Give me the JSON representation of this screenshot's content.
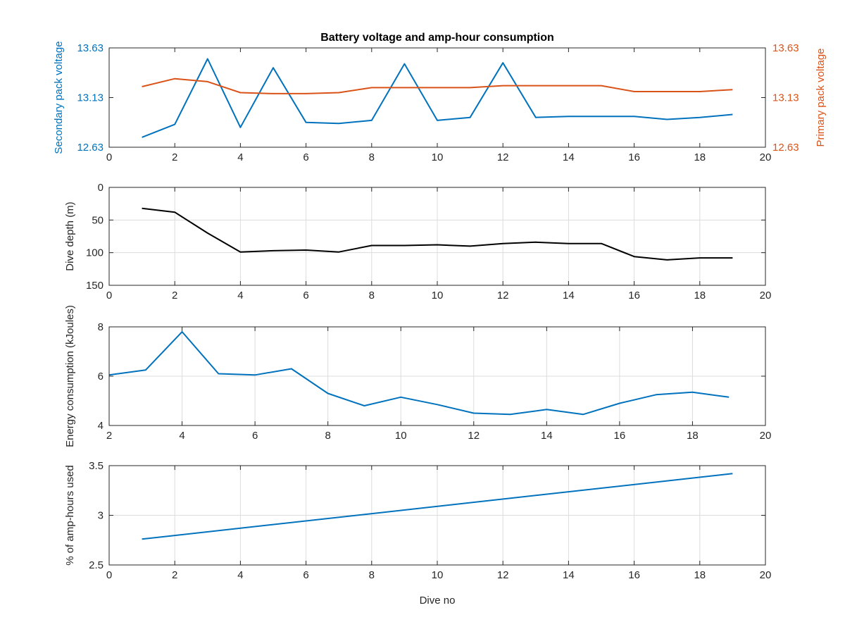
{
  "figure_title": "Battery voltage and amp-hour consumption",
  "chart_data": [
    {
      "type": "line",
      "title": "Battery voltage and amp-hour consumption",
      "xlabel": "",
      "xlim": [
        0,
        20
      ],
      "x_ticks": [
        "0",
        "2",
        "4",
        "6",
        "8",
        "10",
        "12",
        "14",
        "16",
        "18",
        "20"
      ],
      "grid": false,
      "axes": {
        "left": {
          "label": "Secondary pack voltage",
          "ylim": [
            12.63,
            13.63
          ],
          "ticks": [
            "12.63",
            "13.13",
            "13.63"
          ],
          "color": "#0072BD"
        },
        "right": {
          "label": "Primary pack voltage",
          "ylim": [
            12.63,
            13.63
          ],
          "ticks": [
            "12.63",
            "13.13",
            "13.63"
          ],
          "color": "#D95319"
        }
      },
      "series": [
        {
          "axis": "left",
          "color": "#0072BD",
          "x": [
            1,
            2,
            3,
            4,
            5,
            6,
            7,
            8,
            9,
            10,
            11,
            12,
            13,
            14,
            15,
            16,
            17,
            18,
            19
          ],
          "values": [
            12.73,
            12.86,
            13.52,
            12.83,
            13.43,
            12.88,
            12.87,
            12.9,
            13.47,
            12.9,
            12.93,
            13.48,
            12.93,
            12.94,
            12.94,
            12.94,
            12.91,
            12.93,
            12.96
          ]
        },
        {
          "axis": "right",
          "color": "#D95319",
          "x": [
            1,
            2,
            3,
            4,
            5,
            6,
            7,
            8,
            9,
            10,
            11,
            12,
            13,
            14,
            15,
            16,
            17,
            18,
            19
          ],
          "values": [
            13.24,
            13.32,
            13.29,
            13.18,
            13.17,
            13.17,
            13.18,
            13.23,
            13.23,
            13.23,
            13.23,
            13.25,
            13.25,
            13.25,
            13.25,
            13.19,
            13.19,
            13.19,
            13.21
          ]
        }
      ]
    },
    {
      "type": "line",
      "title": "",
      "xlabel": "",
      "ylabel": "Dive depth (m)",
      "xlim": [
        0,
        20
      ],
      "ylim": [
        0,
        150
      ],
      "y_reversed": true,
      "x_ticks": [
        "0",
        "2",
        "4",
        "6",
        "8",
        "10",
        "12",
        "14",
        "16",
        "18",
        "20"
      ],
      "y_ticks": [
        "0",
        "50",
        "100",
        "150"
      ],
      "grid": true,
      "series": [
        {
          "color": "#000000",
          "x": [
            1,
            2,
            3,
            4,
            5,
            6,
            7,
            8,
            9,
            10,
            11,
            12,
            13,
            14,
            15,
            16,
            17,
            18,
            19
          ],
          "values": [
            32,
            38,
            70,
            99,
            97,
            96,
            99,
            89,
            89,
            88,
            90,
            86,
            84,
            86,
            86,
            106,
            111,
            108,
            108
          ]
        }
      ]
    },
    {
      "type": "line",
      "title": "",
      "xlabel": "",
      "ylabel": "Energy consumption (kJoules)",
      "xlim": [
        2,
        20
      ],
      "ylim": [
        4,
        8
      ],
      "x_ticks": [
        "2",
        "4",
        "6",
        "8",
        "10",
        "12",
        "14",
        "16",
        "18",
        "20"
      ],
      "y_ticks": [
        "4",
        "6",
        "8"
      ],
      "grid": true,
      "series": [
        {
          "color": "#0072BD",
          "x": [
            2,
            3,
            4,
            5,
            6,
            7,
            8,
            9,
            10,
            11,
            12,
            13,
            14,
            15,
            16,
            17,
            18,
            19
          ],
          "values": [
            6.05,
            6.25,
            7.8,
            6.1,
            6.05,
            6.3,
            5.3,
            4.8,
            5.15,
            4.85,
            4.5,
            4.45,
            4.65,
            4.45,
            4.9,
            5.25,
            5.35,
            5.15
          ]
        }
      ]
    },
    {
      "type": "line",
      "title": "",
      "xlabel": "Dive no",
      "ylabel": "% of amp-hours used",
      "xlim": [
        0,
        20
      ],
      "ylim": [
        2.5,
        3.5
      ],
      "x_ticks": [
        "0",
        "2",
        "4",
        "6",
        "8",
        "10",
        "12",
        "14",
        "16",
        "18",
        "20"
      ],
      "y_ticks": [
        "2.5",
        "3",
        "3.5"
      ],
      "grid": true,
      "series": [
        {
          "color": "#0072BD",
          "x": [
            1,
            19
          ],
          "values": [
            2.76,
            3.42
          ]
        }
      ]
    }
  ]
}
